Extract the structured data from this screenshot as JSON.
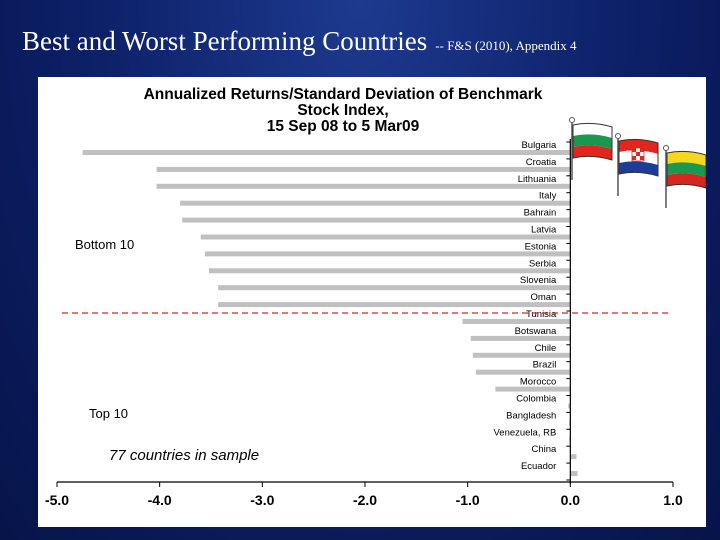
{
  "slide": {
    "title": "Best and Worst Performing Countries",
    "subtitle": "-- F&S (2010), Appendix 4"
  },
  "chart_data": {
    "type": "bar",
    "orientation": "horizontal",
    "title_lines": [
      "Annualized Returns/Standard  Deviation  of Benchmark",
      "Stock Index,",
      "15 Sep 08 to 5 Mar09"
    ],
    "categories": [
      "Bulgaria",
      "Croatia",
      "Lithuania",
      "Italy",
      "Bahrain",
      "Latvia",
      "Estonia",
      "Serbia",
      "Slovenia",
      "Oman",
      "Tunisia",
      "Botswana",
      "Chile",
      "Brazil",
      "Morocco",
      "Colombia",
      "Bangladesh",
      "Venezuela, RB",
      "China",
      "Ecuador"
    ],
    "values": [
      -4.75,
      -4.03,
      -4.03,
      -3.8,
      -3.78,
      -3.6,
      -3.56,
      -3.52,
      -3.43,
      -3.43,
      -1.05,
      -0.97,
      -0.95,
      -0.92,
      -0.73,
      -0.02,
      -0.01,
      -0.01,
      0.06,
      0.07
    ],
    "xlim": [
      -5.0,
      1.0
    ],
    "xticks": [
      "-5.0",
      "-4.0",
      "-3.0",
      "-2.0",
      "-1.0",
      "0.0",
      "1.0"
    ],
    "xtick_values": [
      -5,
      -4,
      -3,
      -2,
      -1,
      0,
      1
    ],
    "bar_color": "#c0c0c0",
    "divider_color": "#e02020",
    "group_labels": {
      "bottom": "Bottom 10",
      "top": "Top 10"
    },
    "note": "77 countries in sample",
    "flags": [
      "Bulgaria",
      "Croatia",
      "Lithuania"
    ]
  }
}
